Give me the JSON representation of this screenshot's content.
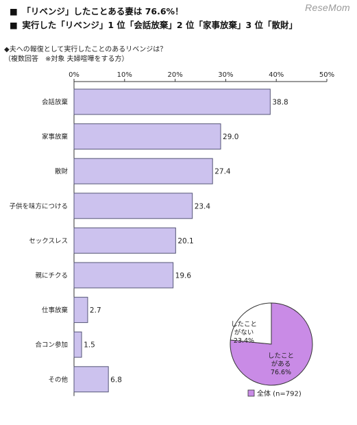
{
  "header": {
    "line1": "「リベンジ」したことある妻は 76.6%！",
    "line2": "実行した「リベンジ」1 位「会話放棄」2 位「家事放棄」3 位「散財」",
    "bullet": "■",
    "logo": "ReseMom"
  },
  "question": {
    "line1": "◆夫への報復として実行したことのあるリベンジは？",
    "line2": "（複数回答　※対象 夫婦喧嘩をする方）"
  },
  "colors": {
    "bar_fill": "#ccc2ee",
    "bar_stroke": "#555577",
    "pie_yes": "#c98be6",
    "pie_no": "#ffffff"
  },
  "chart_data": [
    {
      "type": "bar",
      "orientation": "horizontal",
      "categories": [
        "会話放棄",
        "家事放棄",
        "散財",
        "子供を味方につける",
        "セックスレス",
        "親にチクる",
        "仕事放棄",
        "合コン参加",
        "その他"
      ],
      "values": [
        38.8,
        29.0,
        27.4,
        23.4,
        20.1,
        19.6,
        2.7,
        1.5,
        6.8
      ],
      "value_labels": [
        "38.8",
        "29.0",
        "27.4",
        "23.4",
        "20.1",
        "19.6",
        "2.7",
        "1.5",
        "6.8"
      ],
      "xlim": [
        0,
        50
      ],
      "ticks": [
        "0%",
        "10%",
        "20%",
        "30%",
        "40%",
        "50%"
      ],
      "grid": false
    },
    {
      "type": "pie",
      "slices": [
        {
          "label_lines": [
            "したこと",
            "がある",
            "76.6%"
          ],
          "value": 76.6
        },
        {
          "label_lines": [
            "したこと",
            "がない",
            "23.4%"
          ],
          "value": 23.4
        }
      ],
      "legend": "全体 (n=792)",
      "legend_placement": "bottom"
    }
  ]
}
